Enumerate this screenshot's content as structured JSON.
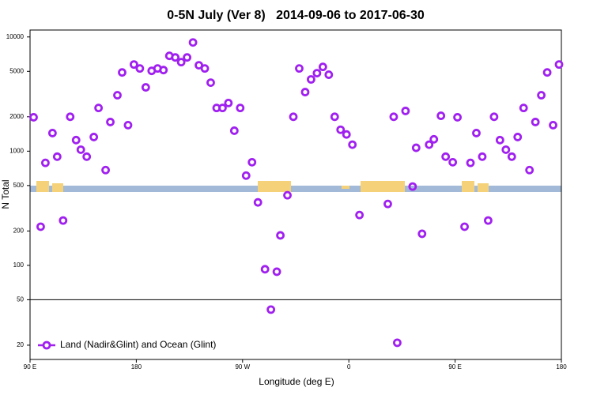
{
  "chart_data": {
    "type": "scatter",
    "title": "0-5N July (Ver 8)   2014-09-06 to 2017-06-30",
    "x_label": "Longitude (deg E)",
    "y_label": "N Total",
    "log_y": true,
    "legend": "bottom-left",
    "hline": 50,
    "xlim": [
      90,
      540
    ],
    "ylim": [
      15,
      11500
    ],
    "xticks": [
      {
        "value": 90,
        "label": "90 E"
      },
      180,
      {
        "value": 270,
        "label": "90 W"
      },
      {
        "value": 360,
        "label": "0"
      },
      {
        "value": 450,
        "label": "90 E"
      },
      {
        "value": 540,
        "label": "180"
      }
    ],
    "yticks": [
      20,
      50,
      100,
      200,
      500,
      1000,
      2000,
      5000,
      10000
    ],
    "series": [
      {
        "name": "Land (Nadir&Glint) and Ocean (Glint)",
        "color": "#a020f0",
        "x": [
          93,
          99,
          103,
          109,
          113,
          118,
          124,
          129,
          133,
          138,
          144,
          148,
          154,
          158,
          164,
          168,
          173,
          178,
          183,
          188,
          193,
          198,
          203,
          208,
          213,
          218,
          223,
          228,
          233,
          238,
          243,
          248,
          253,
          258,
          263,
          268,
          273,
          278,
          283,
          289,
          294,
          299,
          302,
          308,
          313,
          318,
          323,
          328,
          333,
          338,
          343,
          348,
          353,
          358,
          363,
          369,
          393,
          398,
          401,
          408,
          414,
          417,
          422,
          428,
          432,
          438,
          442,
          448,
          452,
          458,
          463,
          468,
          473,
          478,
          483,
          488,
          493,
          498,
          503,
          508,
          513,
          518,
          523,
          528,
          533,
          538
        ],
        "values": [
          1980,
          218,
          790,
          1440,
          895,
          247,
          2000,
          1250,
          1030,
          895,
          1330,
          2390,
          683,
          1800,
          3090,
          4890,
          1690,
          5740,
          5300,
          3620,
          5050,
          5300,
          5130,
          6830,
          6620,
          6020,
          6620,
          8950,
          5650,
          5300,
          3980,
          2390,
          2390,
          2640,
          1510,
          2390,
          611,
          800,
          356,
          92.5,
          41,
          88,
          183,
          411,
          2000,
          5300,
          3290,
          4250,
          4820,
          5470,
          4670,
          2000,
          1540,
          1400,
          1140,
          276,
          345,
          2000,
          21,
          2250,
          490,
          1070,
          189,
          1140,
          1270,
          2040,
          895,
          800,
          1980,
          218,
          790,
          1440,
          895,
          247,
          2000,
          1250,
          1030,
          895,
          1330,
          2390,
          683,
          1800,
          3090,
          4890,
          1690,
          5740
        ]
      }
    ]
  }
}
